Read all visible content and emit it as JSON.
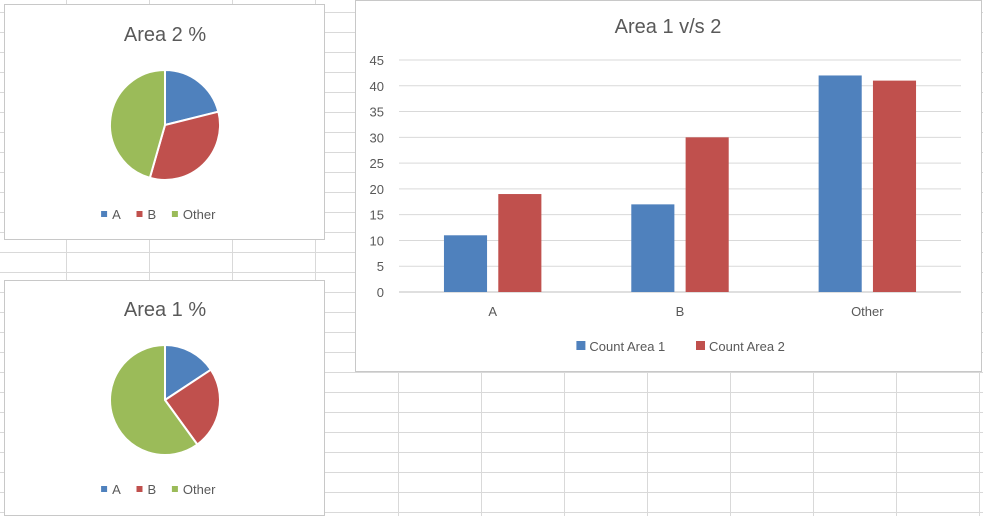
{
  "chart_data": [
    {
      "type": "pie",
      "title": "Area 2 %",
      "categories": [
        "A",
        "B",
        "Other"
      ],
      "values": [
        19,
        30,
        41
      ],
      "colors": [
        "#4f81bd",
        "#c0504d",
        "#9bbb59"
      ],
      "legend": "bottom"
    },
    {
      "type": "pie",
      "title": "Area 1 %",
      "categories": [
        "A",
        "B",
        "Other"
      ],
      "values": [
        11,
        17,
        42
      ],
      "colors": [
        "#4f81bd",
        "#c0504d",
        "#9bbb59"
      ],
      "legend": "bottom"
    },
    {
      "type": "bar",
      "title": "Area 1 v/s 2",
      "categories": [
        "A",
        "B",
        "Other"
      ],
      "series": [
        {
          "name": "Count Area 1",
          "values": [
            11,
            17,
            42
          ],
          "color": "#4f81bd"
        },
        {
          "name": "Count Area 2",
          "values": [
            19,
            30,
            41
          ],
          "color": "#c0504d"
        }
      ],
      "ylim": [
        0,
        45
      ],
      "yticks": [
        0,
        5,
        10,
        15,
        20,
        25,
        30,
        35,
        40,
        45
      ],
      "grid": true,
      "legend": "bottom"
    }
  ]
}
